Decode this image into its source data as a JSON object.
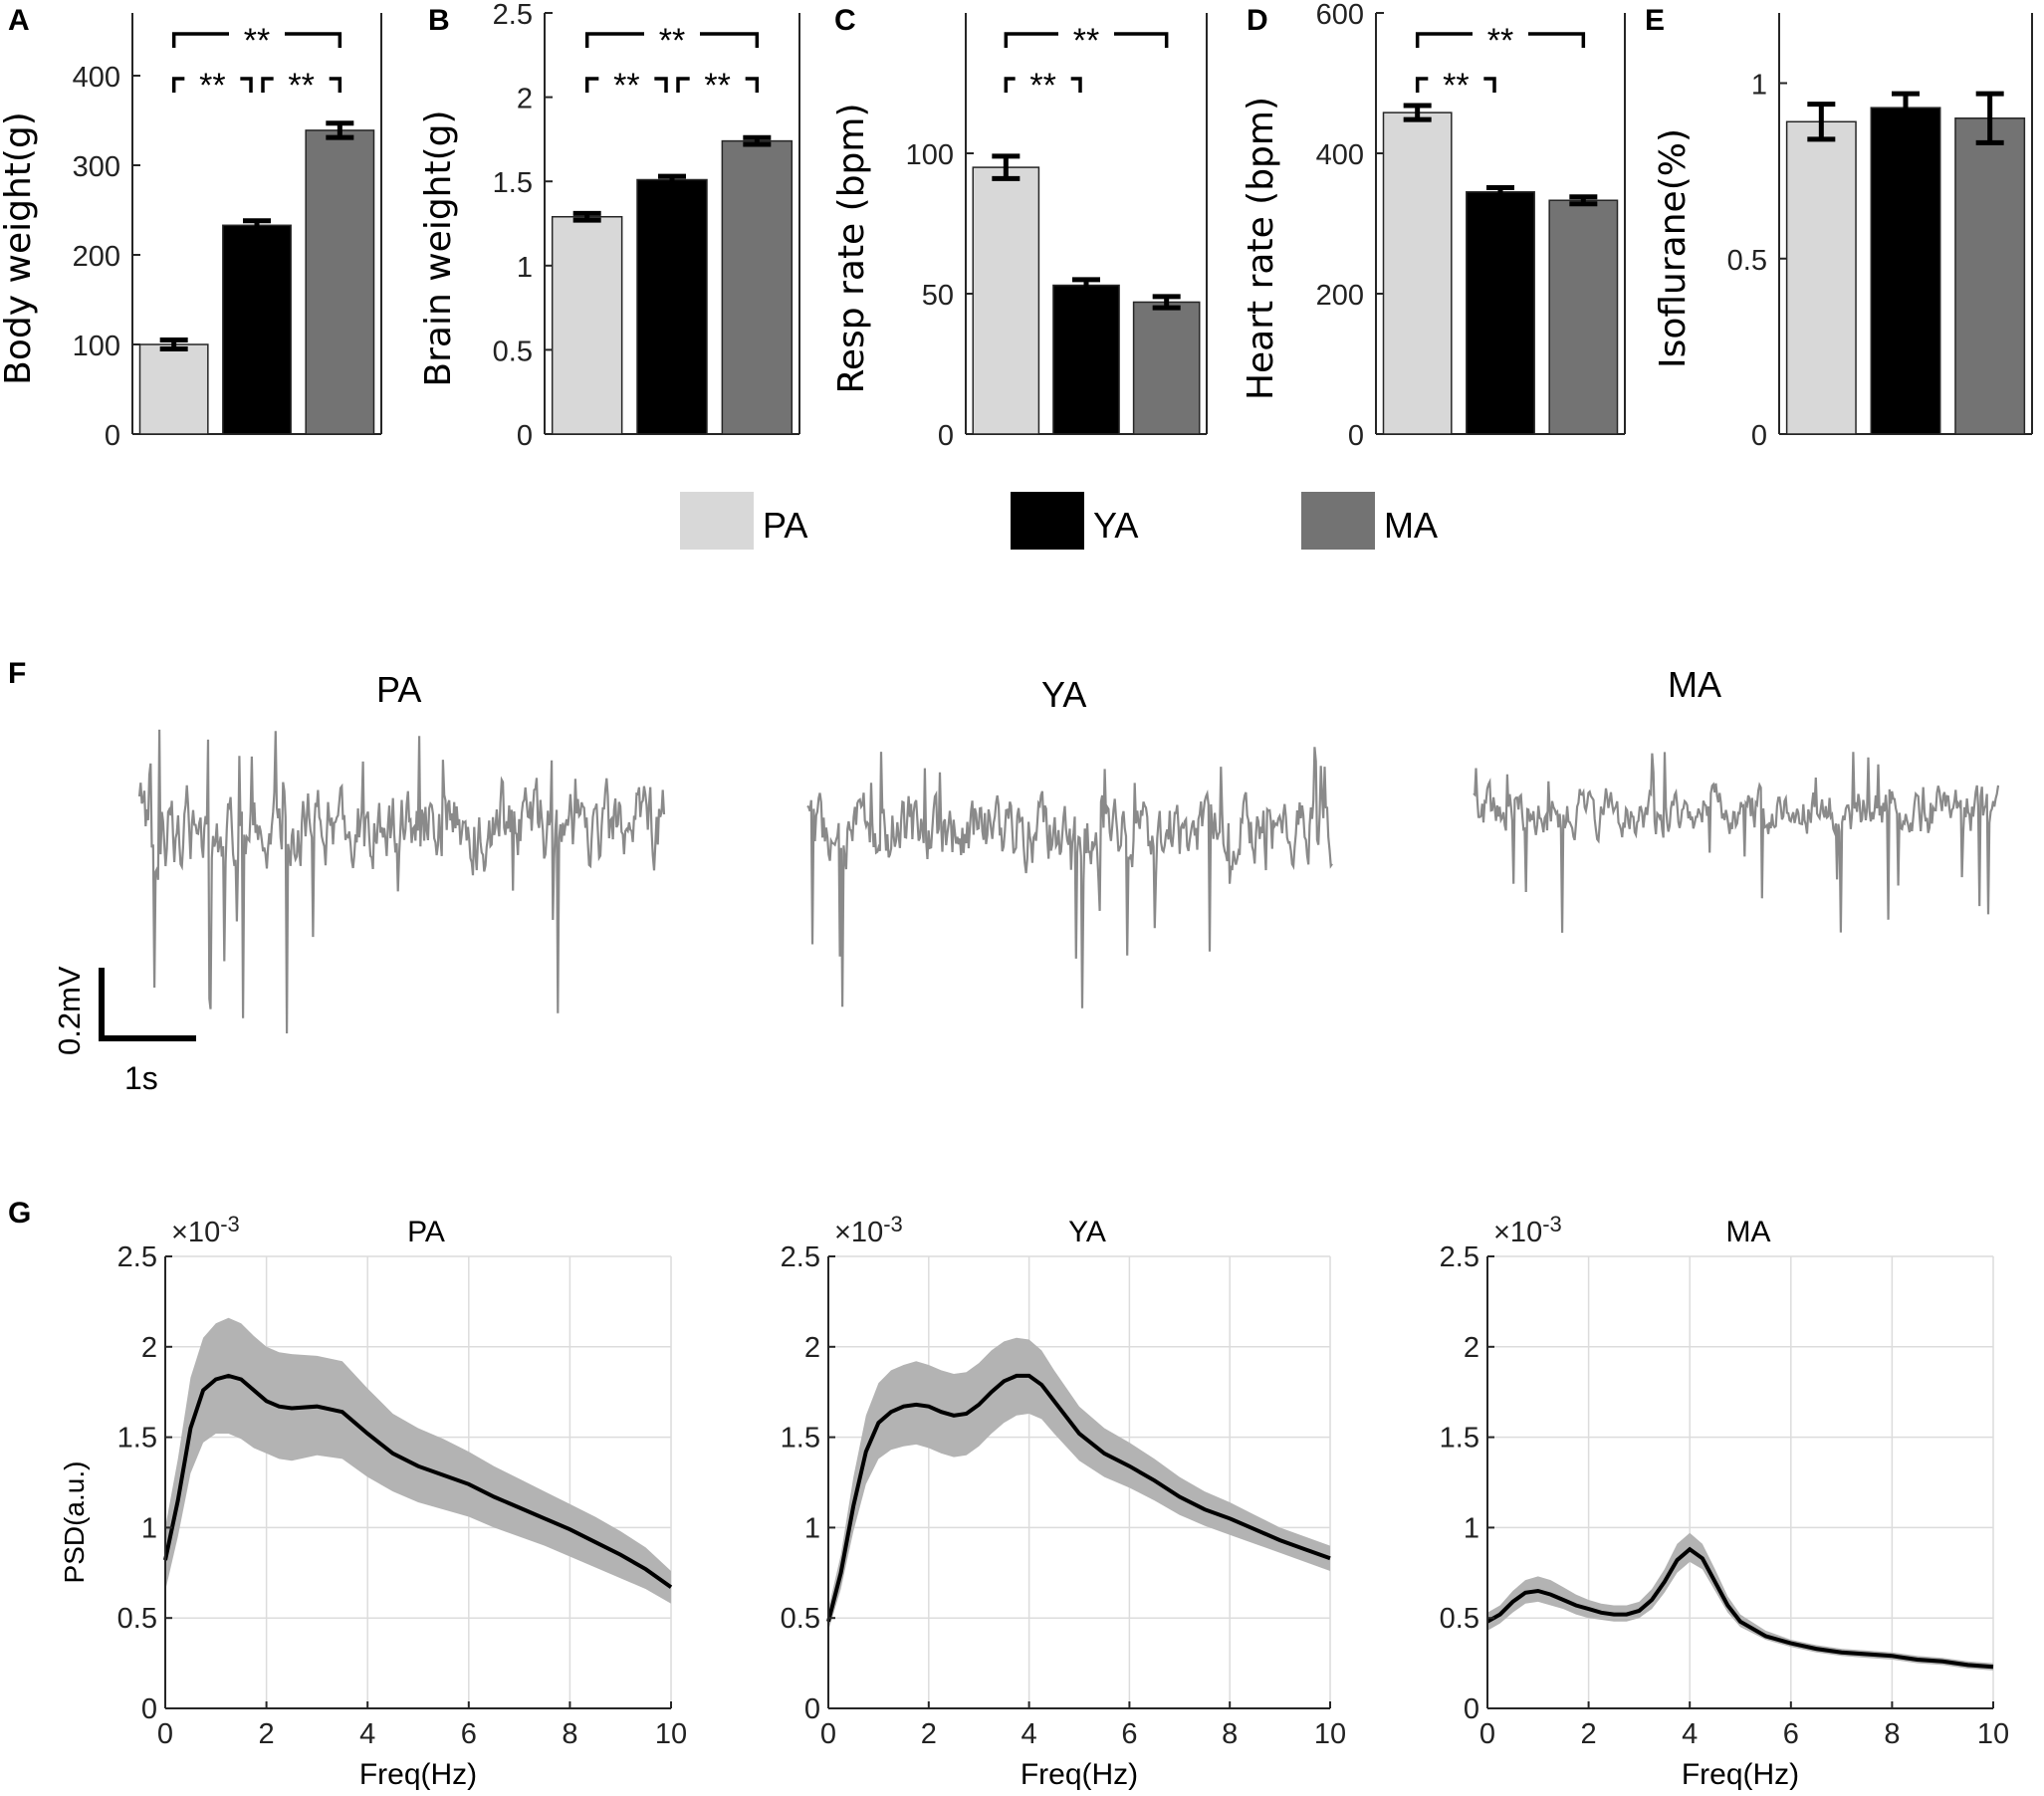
{
  "legend": [
    {
      "label": "PA",
      "color": "#d8d8d8"
    },
    {
      "label": "YA",
      "color": "#000000"
    },
    {
      "label": "MA",
      "color": "#737373"
    }
  ],
  "chart_data": [
    {
      "panel": "A",
      "type": "bar",
      "ylabel": "Body weight(g)",
      "categories": [
        "PA",
        "YA",
        "MA"
      ],
      "values": [
        100,
        233,
        339
      ],
      "errors": [
        5,
        5,
        8
      ],
      "ylim": [
        0,
        470
      ],
      "yticks": [
        0,
        100,
        200,
        300,
        400
      ],
      "ytick_labels": [
        "0",
        "100",
        "200",
        "300",
        "400"
      ],
      "significance": [
        {
          "from": 0,
          "to": 2,
          "label": "**",
          "level": 1
        },
        {
          "from": 0,
          "to": 1,
          "label": "**",
          "level": 0
        },
        {
          "from": 1,
          "to": 2,
          "label": "**",
          "level": 0
        }
      ]
    },
    {
      "panel": "B",
      "type": "bar",
      "ylabel": "Brain weight(g)",
      "categories": [
        "PA",
        "YA",
        "MA"
      ],
      "values": [
        1.29,
        1.51,
        1.74
      ],
      "errors": [
        0.02,
        0.02,
        0.02
      ],
      "ylim": [
        0,
        2.5
      ],
      "yticks": [
        0,
        0.5,
        1,
        1.5,
        2,
        2.5
      ],
      "ytick_labels": [
        "0",
        "0.5",
        "1",
        "1.5",
        "2",
        "2.5"
      ],
      "significance": [
        {
          "from": 0,
          "to": 2,
          "label": "**",
          "level": 1
        },
        {
          "from": 0,
          "to": 1,
          "label": "**",
          "level": 0
        },
        {
          "from": 1,
          "to": 2,
          "label": "**",
          "level": 0
        }
      ]
    },
    {
      "panel": "C",
      "type": "bar",
      "ylabel": "Resp rate (bpm)",
      "categories": [
        "PA",
        "YA",
        "MA"
      ],
      "values": [
        95,
        53,
        47
      ],
      "errors": [
        4,
        2,
        2
      ],
      "ylim": [
        0,
        150
      ],
      "yticks": [
        0,
        50,
        100
      ],
      "ytick_labels": [
        "0",
        "50",
        "100"
      ],
      "significance": [
        {
          "from": 0,
          "to": 2,
          "label": "**",
          "level": 1
        },
        {
          "from": 0,
          "to": 1,
          "label": "**",
          "level": 0
        }
      ]
    },
    {
      "panel": "D",
      "type": "bar",
      "ylabel": "Heart rate (bpm)",
      "categories": [
        "PA",
        "YA",
        "MA"
      ],
      "values": [
        458,
        345,
        333
      ],
      "errors": [
        10,
        6,
        5
      ],
      "ylim": [
        0,
        600
      ],
      "yticks": [
        0,
        200,
        400,
        600
      ],
      "ytick_labels": [
        "0",
        "200",
        "400",
        "600"
      ],
      "significance": [
        {
          "from": 0,
          "to": 2,
          "label": "**",
          "level": 1
        },
        {
          "from": 0,
          "to": 1,
          "label": "**",
          "level": 0
        }
      ]
    },
    {
      "panel": "E",
      "type": "bar",
      "ylabel": "Isoflurane(%)",
      "categories": [
        "PA",
        "YA",
        "MA"
      ],
      "values": [
        0.89,
        0.93,
        0.9
      ],
      "errors": [
        0.05,
        0.04,
        0.07
      ],
      "ylim": [
        0,
        1.2
      ],
      "yticks": [
        0,
        0.5,
        1
      ],
      "ytick_labels": [
        "0",
        "0.5",
        "1"
      ],
      "significance": []
    },
    {
      "panel": "G",
      "type": "line",
      "title": "PA",
      "xlabel": "Freq(Hz)",
      "ylabel": "PSD(a.u.)",
      "exponent_label": "×10",
      "exponent_power": "-3",
      "xlim": [
        0,
        10
      ],
      "ylim": [
        0,
        2.5
      ],
      "xticks": [
        0,
        2,
        4,
        6,
        8,
        10
      ],
      "xtick_labels": [
        "0",
        "2",
        "4",
        "6",
        "8",
        "10"
      ],
      "yticks": [
        0,
        0.5,
        1,
        1.5,
        2,
        2.5
      ],
      "ytick_labels": [
        "0",
        "0.5",
        "1",
        "1.5",
        "2",
        "2.5"
      ],
      "x": [
        0,
        0.25,
        0.5,
        0.75,
        1,
        1.25,
        1.5,
        1.75,
        2,
        2.25,
        2.5,
        3,
        3.5,
        4,
        4.5,
        5,
        5.5,
        6,
        6.5,
        7,
        7.5,
        8,
        8.5,
        9,
        9.5,
        10
      ],
      "mean": [
        0.82,
        1.15,
        1.55,
        1.76,
        1.82,
        1.84,
        1.82,
        1.76,
        1.7,
        1.67,
        1.66,
        1.67,
        1.64,
        1.52,
        1.41,
        1.34,
        1.29,
        1.24,
        1.17,
        1.11,
        1.05,
        0.99,
        0.92,
        0.85,
        0.77,
        0.67
      ],
      "lower": [
        0.65,
        0.95,
        1.3,
        1.47,
        1.52,
        1.52,
        1.49,
        1.44,
        1.41,
        1.38,
        1.37,
        1.4,
        1.38,
        1.28,
        1.2,
        1.14,
        1.1,
        1.06,
        1.0,
        0.95,
        0.9,
        0.84,
        0.78,
        0.72,
        0.66,
        0.58
      ],
      "upper": [
        1.0,
        1.38,
        1.83,
        2.05,
        2.13,
        2.16,
        2.13,
        2.06,
        2.0,
        1.97,
        1.96,
        1.95,
        1.92,
        1.77,
        1.63,
        1.55,
        1.49,
        1.42,
        1.34,
        1.27,
        1.2,
        1.13,
        1.06,
        0.98,
        0.89,
        0.76
      ]
    },
    {
      "panel": "G",
      "type": "line",
      "title": "YA",
      "xlabel": "Freq(Hz)",
      "ylabel": "",
      "exponent_label": "×10",
      "exponent_power": "-3",
      "xlim": [
        0,
        10
      ],
      "ylim": [
        0,
        2.5
      ],
      "xticks": [
        0,
        2,
        4,
        6,
        8,
        10
      ],
      "xtick_labels": [
        "0",
        "2",
        "4",
        "6",
        "8",
        "10"
      ],
      "yticks": [
        0,
        0.5,
        1,
        1.5,
        2,
        2.5
      ],
      "ytick_labels": [
        "0",
        "0.5",
        "1",
        "1.5",
        "2",
        "2.5"
      ],
      "x": [
        0,
        0.25,
        0.5,
        0.75,
        1,
        1.25,
        1.5,
        1.75,
        2,
        2.25,
        2.5,
        2.75,
        3,
        3.25,
        3.5,
        3.75,
        4,
        4.25,
        4.5,
        5,
        5.5,
        6,
        6.5,
        7,
        7.5,
        8,
        8.5,
        9,
        9.5,
        10
      ],
      "mean": [
        0.48,
        0.75,
        1.12,
        1.42,
        1.58,
        1.64,
        1.67,
        1.68,
        1.67,
        1.64,
        1.62,
        1.63,
        1.68,
        1.75,
        1.81,
        1.84,
        1.84,
        1.79,
        1.7,
        1.52,
        1.41,
        1.34,
        1.26,
        1.17,
        1.1,
        1.05,
        0.99,
        0.93,
        0.88,
        0.83
      ],
      "lower": [
        0.43,
        0.66,
        0.98,
        1.24,
        1.38,
        1.43,
        1.45,
        1.46,
        1.44,
        1.41,
        1.39,
        1.4,
        1.45,
        1.52,
        1.58,
        1.62,
        1.63,
        1.6,
        1.52,
        1.37,
        1.28,
        1.22,
        1.15,
        1.07,
        1.01,
        0.96,
        0.91,
        0.86,
        0.81,
        0.76
      ],
      "upper": [
        0.55,
        0.85,
        1.28,
        1.62,
        1.8,
        1.87,
        1.9,
        1.92,
        1.9,
        1.87,
        1.85,
        1.86,
        1.91,
        1.98,
        2.03,
        2.05,
        2.04,
        1.98,
        1.87,
        1.67,
        1.55,
        1.47,
        1.38,
        1.28,
        1.2,
        1.14,
        1.07,
        1.0,
        0.95,
        0.9
      ]
    },
    {
      "panel": "G",
      "type": "line",
      "title": "MA",
      "xlabel": "Freq(Hz)",
      "ylabel": "",
      "exponent_label": "×10",
      "exponent_power": "-3",
      "xlim": [
        0,
        10
      ],
      "ylim": [
        0,
        2.5
      ],
      "xticks": [
        0,
        2,
        4,
        6,
        8,
        10
      ],
      "xtick_labels": [
        "0",
        "2",
        "4",
        "6",
        "8",
        "10"
      ],
      "yticks": [
        0,
        0.5,
        1,
        1.5,
        2,
        2.5
      ],
      "ytick_labels": [
        "0",
        "0.5",
        "1",
        "1.5",
        "2",
        "2.5"
      ],
      "x": [
        0,
        0.25,
        0.5,
        0.75,
        1,
        1.25,
        1.5,
        1.75,
        2,
        2.25,
        2.5,
        2.75,
        3,
        3.25,
        3.5,
        3.75,
        4,
        4.25,
        4.5,
        4.75,
        5,
        5.5,
        6,
        6.5,
        7,
        7.5,
        8,
        8.5,
        9,
        9.5,
        10
      ],
      "mean": [
        0.48,
        0.52,
        0.59,
        0.64,
        0.65,
        0.63,
        0.6,
        0.57,
        0.55,
        0.53,
        0.52,
        0.52,
        0.54,
        0.6,
        0.7,
        0.82,
        0.88,
        0.83,
        0.7,
        0.57,
        0.48,
        0.4,
        0.36,
        0.33,
        0.31,
        0.3,
        0.29,
        0.27,
        0.26,
        0.24,
        0.23
      ],
      "lower": [
        0.43,
        0.47,
        0.53,
        0.58,
        0.59,
        0.57,
        0.55,
        0.52,
        0.5,
        0.49,
        0.48,
        0.48,
        0.5,
        0.55,
        0.64,
        0.75,
        0.81,
        0.77,
        0.65,
        0.53,
        0.45,
        0.38,
        0.34,
        0.31,
        0.29,
        0.28,
        0.27,
        0.25,
        0.24,
        0.22,
        0.21
      ],
      "upper": [
        0.53,
        0.57,
        0.65,
        0.71,
        0.73,
        0.71,
        0.67,
        0.63,
        0.6,
        0.58,
        0.57,
        0.57,
        0.59,
        0.66,
        0.77,
        0.91,
        0.97,
        0.91,
        0.77,
        0.62,
        0.52,
        0.43,
        0.38,
        0.35,
        0.33,
        0.32,
        0.31,
        0.29,
        0.28,
        0.26,
        0.25
      ]
    }
  ],
  "panel_letters": [
    "A",
    "B",
    "C",
    "D",
    "E",
    "F",
    "G"
  ],
  "traces": {
    "titles": [
      "PA",
      "YA",
      "MA"
    ],
    "scale_voltage": "0.2mV",
    "scale_time": "1s",
    "color": "#8a8a8a"
  }
}
